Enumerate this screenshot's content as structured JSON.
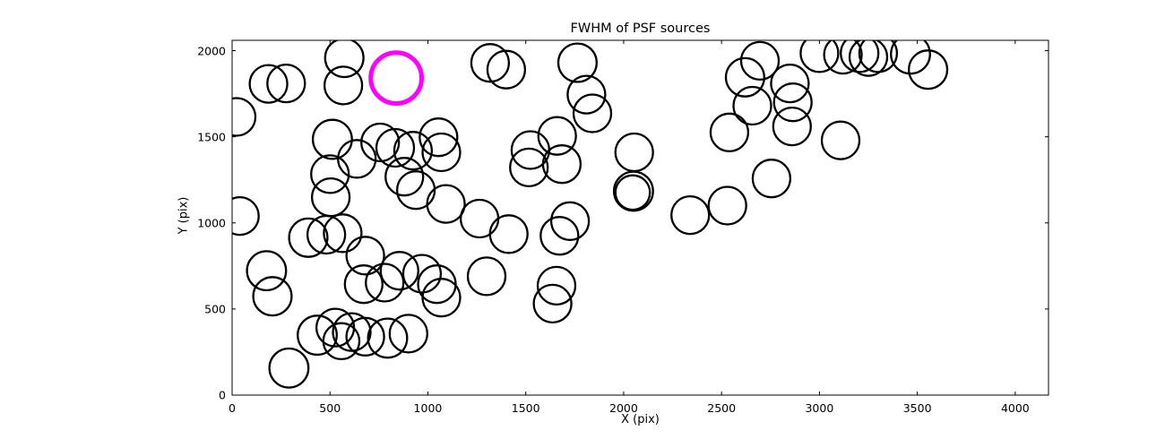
{
  "title": "FWHM of PSF sources",
  "chart_data": {
    "type": "scatter",
    "title": "FWHM of PSF sources",
    "xlabel": "X (pix)",
    "ylabel": "Y (pix)",
    "xlim": [
      0,
      4170
    ],
    "ylim": [
      0,
      2060
    ],
    "xticks": [
      0,
      500,
      1000,
      1500,
      2000,
      2500,
      3000,
      3500,
      4000
    ],
    "yticks": [
      0,
      500,
      1000,
      1500,
      2000
    ],
    "grid": false,
    "legend": "none",
    "marker_style": "open-circle",
    "marker_color": "#000000",
    "marker_stroke_px": 2.3,
    "highlight_color": "#ff00ff",
    "highlight_stroke_px": 5,
    "highlight_point": [
      838,
      1841,
      130
    ],
    "points": [
      [
        186,
        1807,
        96
      ],
      [
        276,
        1810,
        96
      ],
      [
        573,
        1958,
        98
      ],
      [
        568,
        1798,
        96
      ],
      [
        1318,
        1929,
        96
      ],
      [
        1400,
        1890,
        96
      ],
      [
        23,
        1615,
        96
      ],
      [
        1764,
        1930,
        98
      ],
      [
        1810,
        1745,
        96
      ],
      [
        1840,
        1636,
        96
      ],
      [
        2696,
        1941,
        96
      ],
      [
        2620,
        1845,
        98
      ],
      [
        2849,
        1810,
        96
      ],
      [
        2864,
        1700,
        96
      ],
      [
        2657,
        1680,
        96
      ],
      [
        2860,
        1560,
        96
      ],
      [
        3000,
        1985,
        96
      ],
      [
        3120,
        1976,
        96
      ],
      [
        3205,
        1985,
        96
      ],
      [
        3250,
        1963,
        96
      ],
      [
        3300,
        1985,
        96
      ],
      [
        3465,
        1980,
        100
      ],
      [
        3555,
        1890,
        98
      ],
      [
        2540,
        1525,
        96
      ],
      [
        3108,
        1479,
        96
      ],
      [
        512,
        1485,
        100
      ],
      [
        637,
        1372,
        96
      ],
      [
        756,
        1467,
        96
      ],
      [
        833,
        1436,
        96
      ],
      [
        924,
        1419,
        96
      ],
      [
        1054,
        1497,
        96
      ],
      [
        1069,
        1410,
        96
      ],
      [
        1660,
        1505,
        96
      ],
      [
        1524,
        1423,
        96
      ],
      [
        1516,
        1322,
        96
      ],
      [
        1684,
        1341,
        96
      ],
      [
        2054,
        1410,
        96
      ],
      [
        2050,
        1184,
        100
      ],
      [
        2046,
        1176,
        88
      ],
      [
        2755,
        1258,
        96
      ],
      [
        880,
        1268,
        96
      ],
      [
        939,
        1190,
        96
      ],
      [
        1092,
        1110,
        96
      ],
      [
        1264,
        1025,
        96
      ],
      [
        1413,
        935,
        96
      ],
      [
        1672,
        925,
        96
      ],
      [
        1726,
        1010,
        96
      ],
      [
        500,
        1283,
        96
      ],
      [
        504,
        1149,
        96
      ],
      [
        40,
        1040,
        96
      ],
      [
        389,
        914,
        98
      ],
      [
        481,
        931,
        96
      ],
      [
        565,
        940,
        96
      ],
      [
        2340,
        1045,
        96
      ],
      [
        2530,
        1100,
        96
      ],
      [
        176,
        722,
        100
      ],
      [
        206,
        574,
        98
      ],
      [
        680,
        810,
        96
      ],
      [
        672,
        644,
        96
      ],
      [
        779,
        653,
        96
      ],
      [
        855,
        722,
        96
      ],
      [
        970,
        705,
        96
      ],
      [
        1046,
        644,
        96
      ],
      [
        1069,
        566,
        96
      ],
      [
        1300,
        690,
        96
      ],
      [
        1657,
        635,
        96
      ],
      [
        1637,
        531,
        96
      ],
      [
        435,
        348,
        100
      ],
      [
        527,
        392,
        96
      ],
      [
        558,
        313,
        92
      ],
      [
        611,
        366,
        96
      ],
      [
        680,
        339,
        96
      ],
      [
        794,
        331,
        100
      ],
      [
        901,
        357,
        96
      ],
      [
        290,
        157,
        100
      ]
    ]
  }
}
